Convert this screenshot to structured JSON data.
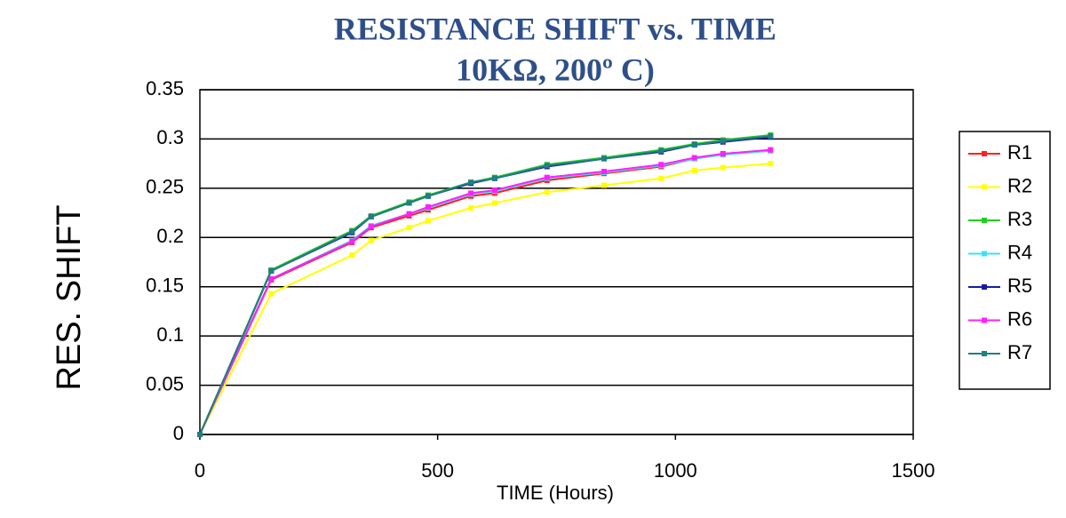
{
  "chart_data": {
    "type": "line",
    "title": [
      "RESISTANCE SHIFT vs. TIME",
      "10KΩ,  200º C)"
    ],
    "x_label": "TIME (Hours)",
    "y_label": "RES. SHIFT",
    "x": [
      0,
      150,
      320,
      360,
      440,
      480,
      570,
      620,
      730,
      850,
      970,
      1040,
      1100,
      1200
    ],
    "series": [
      {
        "name": "R1",
        "color": "#ff2020",
        "values": [
          0,
          0.157,
          0.195,
          0.21,
          0.222,
          0.228,
          0.242,
          0.245,
          0.258,
          0.265,
          0.272,
          0.28,
          0.285,
          0.288
        ]
      },
      {
        "name": "R2",
        "color": "#ffff00",
        "values": [
          0,
          0.143,
          0.182,
          0.197,
          0.21,
          0.217,
          0.23,
          0.235,
          0.246,
          0.253,
          0.26,
          0.268,
          0.271,
          0.275
        ]
      },
      {
        "name": "R3",
        "color": "#20d020",
        "values": [
          0,
          0.167,
          0.207,
          0.222,
          0.236,
          0.243,
          0.256,
          0.261,
          0.274,
          0.281,
          0.289,
          0.295,
          0.299,
          0.304
        ]
      },
      {
        "name": "R4",
        "color": "#40e0f0",
        "values": [
          0,
          0.158,
          0.197,
          0.212,
          0.224,
          0.23,
          0.244,
          0.247,
          0.26,
          0.266,
          0.273,
          0.28,
          0.284,
          0.288
        ]
      },
      {
        "name": "R5",
        "color": "#1a1aa0",
        "values": [
          0,
          0.166,
          0.205,
          0.221,
          0.235,
          0.242,
          0.255,
          0.26,
          0.272,
          0.28,
          0.287,
          0.294,
          0.297,
          0.302
        ]
      },
      {
        "name": "R6",
        "color": "#ff20ff",
        "values": [
          0,
          0.158,
          0.196,
          0.211,
          0.224,
          0.231,
          0.245,
          0.248,
          0.261,
          0.267,
          0.274,
          0.281,
          0.285,
          0.289
        ]
      },
      {
        "name": "R7",
        "color": "#208080",
        "values": [
          0,
          0.166,
          0.206,
          0.221,
          0.235,
          0.242,
          0.256,
          0.26,
          0.273,
          0.28,
          0.288,
          0.294,
          0.298,
          0.303
        ]
      }
    ],
    "xlim": [
      0,
      1500
    ],
    "xticks": [
      0,
      500,
      1000,
      1500
    ],
    "ylim": [
      0,
      0.35
    ],
    "yticks": [
      0,
      0.05,
      0.1,
      0.15,
      0.2,
      0.25,
      0.3,
      0.35
    ],
    "grid": true,
    "legend": "right"
  }
}
